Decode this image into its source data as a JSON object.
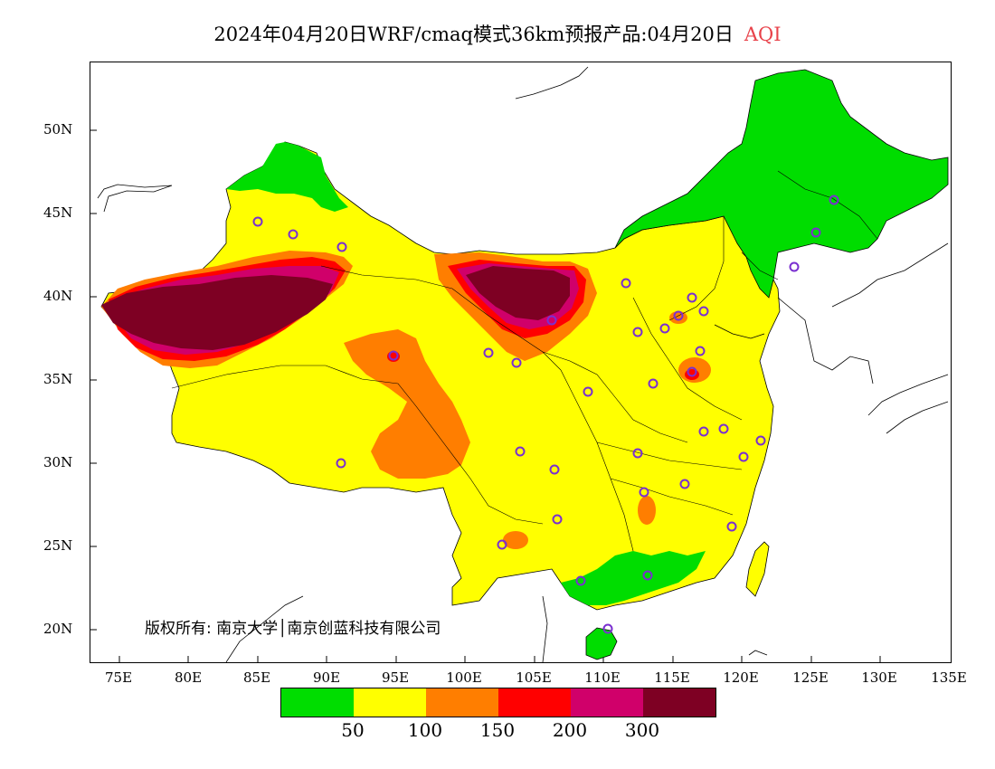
{
  "title": {
    "main": "2024年04月20日WRF/cmaq模式36km预报产品:04月20日",
    "product": "AQI"
  },
  "axes": {
    "lat_labels": [
      "50N",
      "45N",
      "40N",
      "35N",
      "30N",
      "25N",
      "20N"
    ],
    "lon_labels": [
      "75E",
      "80E",
      "85E",
      "90E",
      "95E",
      "100E",
      "105E",
      "110E",
      "115E",
      "120E",
      "125E",
      "130E",
      "135E"
    ]
  },
  "copyright": "版权所有: 南京大学│南京创蓝科技有限公司",
  "legend": {
    "colors": [
      "#00dd00",
      "#ffff00",
      "#ff7e00",
      "#ff0000",
      "#d0006a",
      "#7e0023"
    ],
    "labels": [
      "50",
      "100",
      "150",
      "200",
      "300"
    ]
  },
  "colors": {
    "ocean": "#ffffff",
    "border": "#000000",
    "station_marker": "#7a2fd0"
  }
}
